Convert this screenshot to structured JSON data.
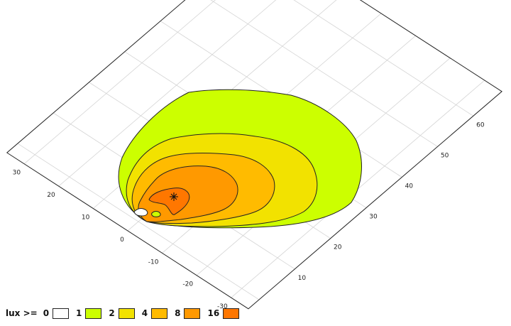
{
  "chart_data": {
    "type": "heatmap",
    "legend": {
      "title": "lux >=",
      "levels": [
        {
          "label": "0",
          "color": "#ffffff"
        },
        {
          "label": "1",
          "color": "#ccff00"
        },
        {
          "label": "2",
          "color": "#f2e200"
        },
        {
          "label": "4",
          "color": "#ffbb00"
        },
        {
          "label": "8",
          "color": "#ff9900"
        },
        {
          "label": "16",
          "color": "#ff7700"
        }
      ]
    },
    "x_axis": {
      "ticks": [
        "-30",
        "-20",
        "-10",
        "0",
        "10",
        "20",
        "30"
      ],
      "range": [
        -35,
        35
      ]
    },
    "y_axis": {
      "ticks": [
        "10",
        "20",
        "30",
        "40",
        "50",
        "60"
      ],
      "range": [
        -3,
        68
      ]
    },
    "grid": true,
    "source_marker": "asterisk"
  }
}
